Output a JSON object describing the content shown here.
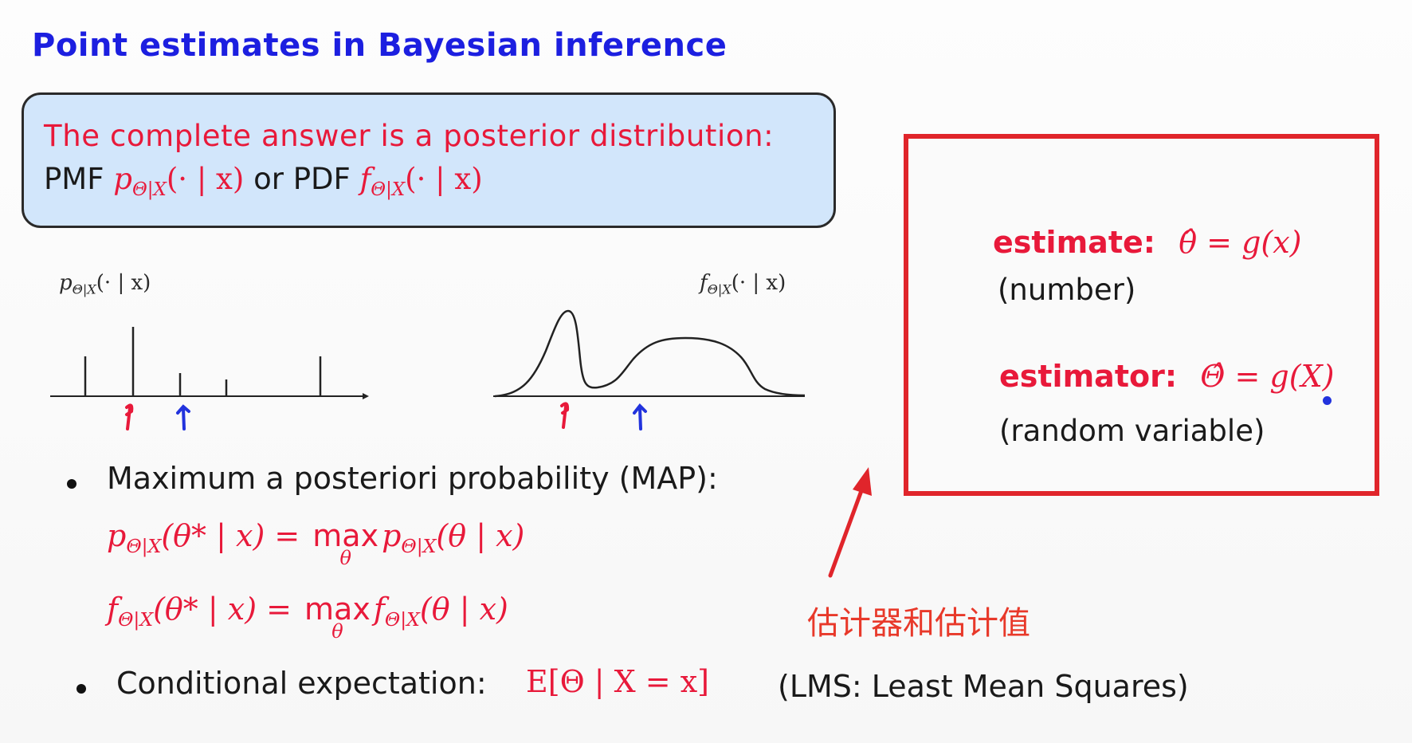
{
  "title": "Point estimates in Bayesian inference",
  "callout": {
    "line1": "The complete answer is a posterior distribution:",
    "pmf_label": "PMF",
    "or_pdf": "or PDF",
    "pmf_math": "p",
    "pmf_sub": "Θ|X",
    "pmf_args": "(· | x)",
    "pdf_math": "f",
    "pdf_sub": "Θ|X",
    "pdf_args": "(· | x)"
  },
  "plots": {
    "pmf_label": "p",
    "pmf_sub": "Θ|X",
    "pmf_args": "(· | x)",
    "pdf_label": "f",
    "pdf_sub": "Θ|X",
    "pdf_args": "(· | x)"
  },
  "bullets": {
    "map": "Maximum a posteriori probability (MAP):",
    "map_eq1_lhs_fn": "p",
    "map_eq1_sub": "Θ|X",
    "map_eq1_lhs_args": "(θ* | x) =",
    "map_eq1_rhs_fn": "p",
    "map_eq1_rhs_args": "(θ | x)",
    "map_eq2_lhs_fn": "f",
    "map_eq2_lhs_args": "(θ* | x) =",
    "map_eq2_rhs_fn": "f",
    "map_eq2_rhs_args": "(θ | x)",
    "max_word": "max",
    "max_under": "θ",
    "cond": "Conditional expectation:",
    "cond_eq": "E[Θ | X = x]",
    "lms": "(LMS: Least Mean Squares)"
  },
  "box": {
    "estimate_label": "estimate:",
    "estimate_eq": "θ̂ = g(x)",
    "estimate_note": "(number)",
    "estimator_label": "estimator:",
    "estimator_eq": "Θ̂ = g(X)",
    "estimator_note": "(random variable)"
  },
  "annotation": "估计器和估计值",
  "colors": {
    "title_blue": "#1c1fe0",
    "math_red": "#e8193a",
    "box_red": "#e0252b",
    "callout_bg": "#d2e6fb",
    "marker_blue": "#2233dd"
  }
}
